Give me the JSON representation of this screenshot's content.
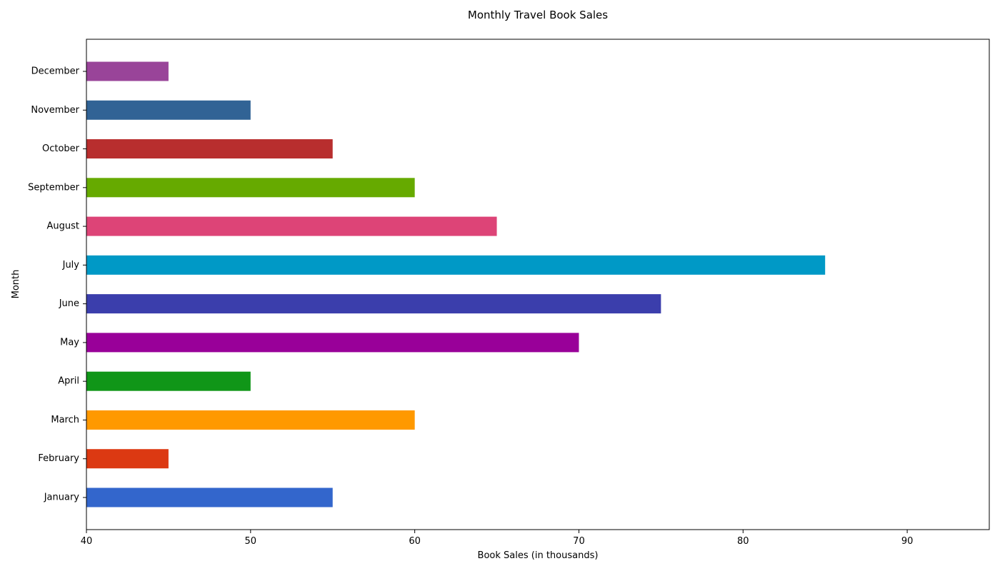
{
  "chart_data": {
    "type": "bar",
    "orientation": "horizontal",
    "title": "Monthly Travel Book Sales",
    "xlabel": "Book Sales (in thousands)",
    "ylabel": "Month",
    "xlim": [
      40,
      95
    ],
    "xticks": [
      40,
      50,
      60,
      70,
      80,
      90
    ],
    "grid": false,
    "legend": "none",
    "categories": [
      "January",
      "February",
      "March",
      "April",
      "May",
      "June",
      "July",
      "August",
      "September",
      "October",
      "November",
      "December"
    ],
    "values": [
      55,
      45,
      60,
      50,
      70,
      75,
      85,
      65,
      60,
      55,
      50,
      45
    ],
    "colors": [
      "#3366CC",
      "#DC3912",
      "#FF9900",
      "#109618",
      "#990099",
      "#3B3EAC",
      "#0099C6",
      "#DD4477",
      "#66AA00",
      "#B82E2E",
      "#316395",
      "#994499"
    ]
  }
}
